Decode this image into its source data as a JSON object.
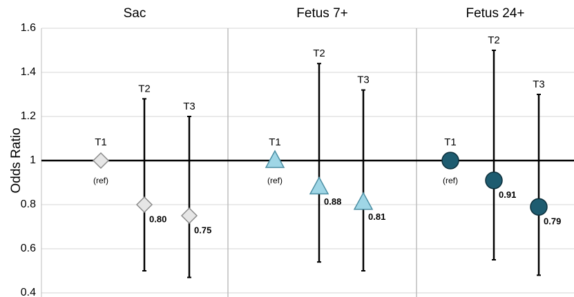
{
  "chart_data": {
    "type": "errorbar",
    "ylabel": "Odds Ratio",
    "ylim": [
      0.4,
      1.6
    ],
    "yticks": [
      0.4,
      0.6,
      0.8,
      1,
      1.2,
      1.4,
      1.6
    ],
    "grid": true,
    "series": [
      {
        "name": "Sac",
        "marker": "diamond",
        "color": "#e6e6e6",
        "edge": "#8a8a8a",
        "categories": [
          "T1",
          "T2",
          "T3"
        ],
        "values": [
          1,
          0.8,
          0.75
        ],
        "value_labels": [
          null,
          "0.80",
          "0.75"
        ],
        "lower": [
          null,
          0.5,
          0.47
        ],
        "upper": [
          null,
          1.28,
          1.2
        ],
        "reference_label": "(ref)"
      },
      {
        "name": "Fetus 7+",
        "marker": "triangle",
        "color": "#9fd6e6",
        "edge": "#4b8ea3",
        "categories": [
          "T1",
          "T2",
          "T3"
        ],
        "values": [
          1,
          0.88,
          0.81
        ],
        "value_labels": [
          null,
          "0.88",
          "0.81"
        ],
        "lower": [
          null,
          0.54,
          0.5
        ],
        "upper": [
          null,
          1.44,
          1.32
        ],
        "reference_label": "(ref)"
      },
      {
        "name": "Fetus 24+",
        "marker": "circle",
        "color": "#1e5c70",
        "edge": "#0c2f3b",
        "categories": [
          "T1",
          "T2",
          "T3"
        ],
        "values": [
          1,
          0.91,
          0.79
        ],
        "value_labels": [
          null,
          "0.91",
          "0.79"
        ],
        "lower": [
          null,
          0.55,
          0.48
        ],
        "upper": [
          null,
          1.5,
          1.3
        ],
        "reference_label": "(ref)"
      }
    ]
  }
}
